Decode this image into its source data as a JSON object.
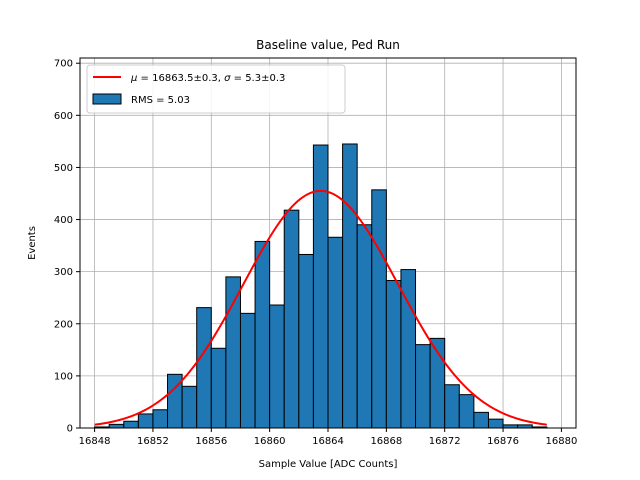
{
  "chart_data": {
    "type": "bar",
    "title": "Baseline value, Ped Run",
    "xlabel": "Sample Value [ADC Counts]",
    "ylabel": "Events",
    "xlim": [
      16847,
      16881
    ],
    "ylim": [
      0,
      710
    ],
    "xticks": [
      16848,
      16852,
      16856,
      16860,
      16864,
      16868,
      16872,
      16876,
      16880
    ],
    "yticks": [
      0,
      100,
      200,
      300,
      400,
      500,
      600,
      700
    ],
    "grid": true,
    "legend_position": "top-left",
    "bin_edges_start": 16848,
    "bin_width": 1,
    "counts": [
      2,
      7,
      13,
      27,
      35,
      103,
      80,
      231,
      153,
      290,
      220,
      358,
      236,
      418,
      333,
      543,
      366,
      545,
      390,
      457,
      283,
      304,
      160,
      172,
      83,
      64,
      30,
      17,
      6,
      6,
      2
    ],
    "bar_color": "#1f77b4",
    "bar_edge_color": "#000000",
    "series": [
      {
        "name": "RMS = 5.03",
        "kind": "histogram"
      },
      {
        "name": "μ = 16863.5±0.3, σ = 5.3±0.3",
        "kind": "gaussian-fit",
        "mu": 16863.5,
        "sigma": 5.3,
        "amplitude": 455,
        "x_range": [
          16848,
          16879
        ],
        "color": "#ff0000"
      }
    ],
    "legend": {
      "fit_prefix_mu": "μ",
      "fit_middle": " = 16863.5±0.3, ",
      "fit_prefix_sigma": "σ",
      "fit_suffix": " = 5.3±0.3",
      "hist_label": "RMS = 5.03"
    }
  }
}
